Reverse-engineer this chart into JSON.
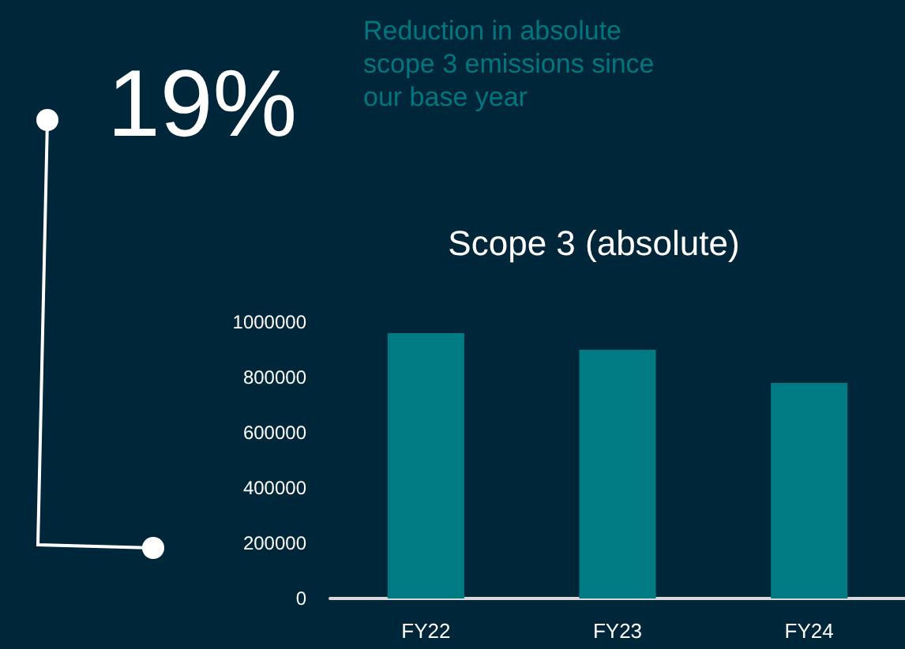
{
  "chart_data": {
    "type": "bar",
    "title": "Scope 3 (absolute)",
    "annotations": [
      "19%",
      "Reduction in absolute scope 3 emissions since our base year"
    ],
    "categories": [
      "FY22",
      "FY23",
      "FY24"
    ],
    "values": [
      960000,
      900000,
      780000
    ],
    "color": "#007b83",
    "ylim": [
      0,
      1000000
    ],
    "yticks": [
      0,
      200000,
      400000,
      600000,
      800000,
      1000000
    ]
  }
}
